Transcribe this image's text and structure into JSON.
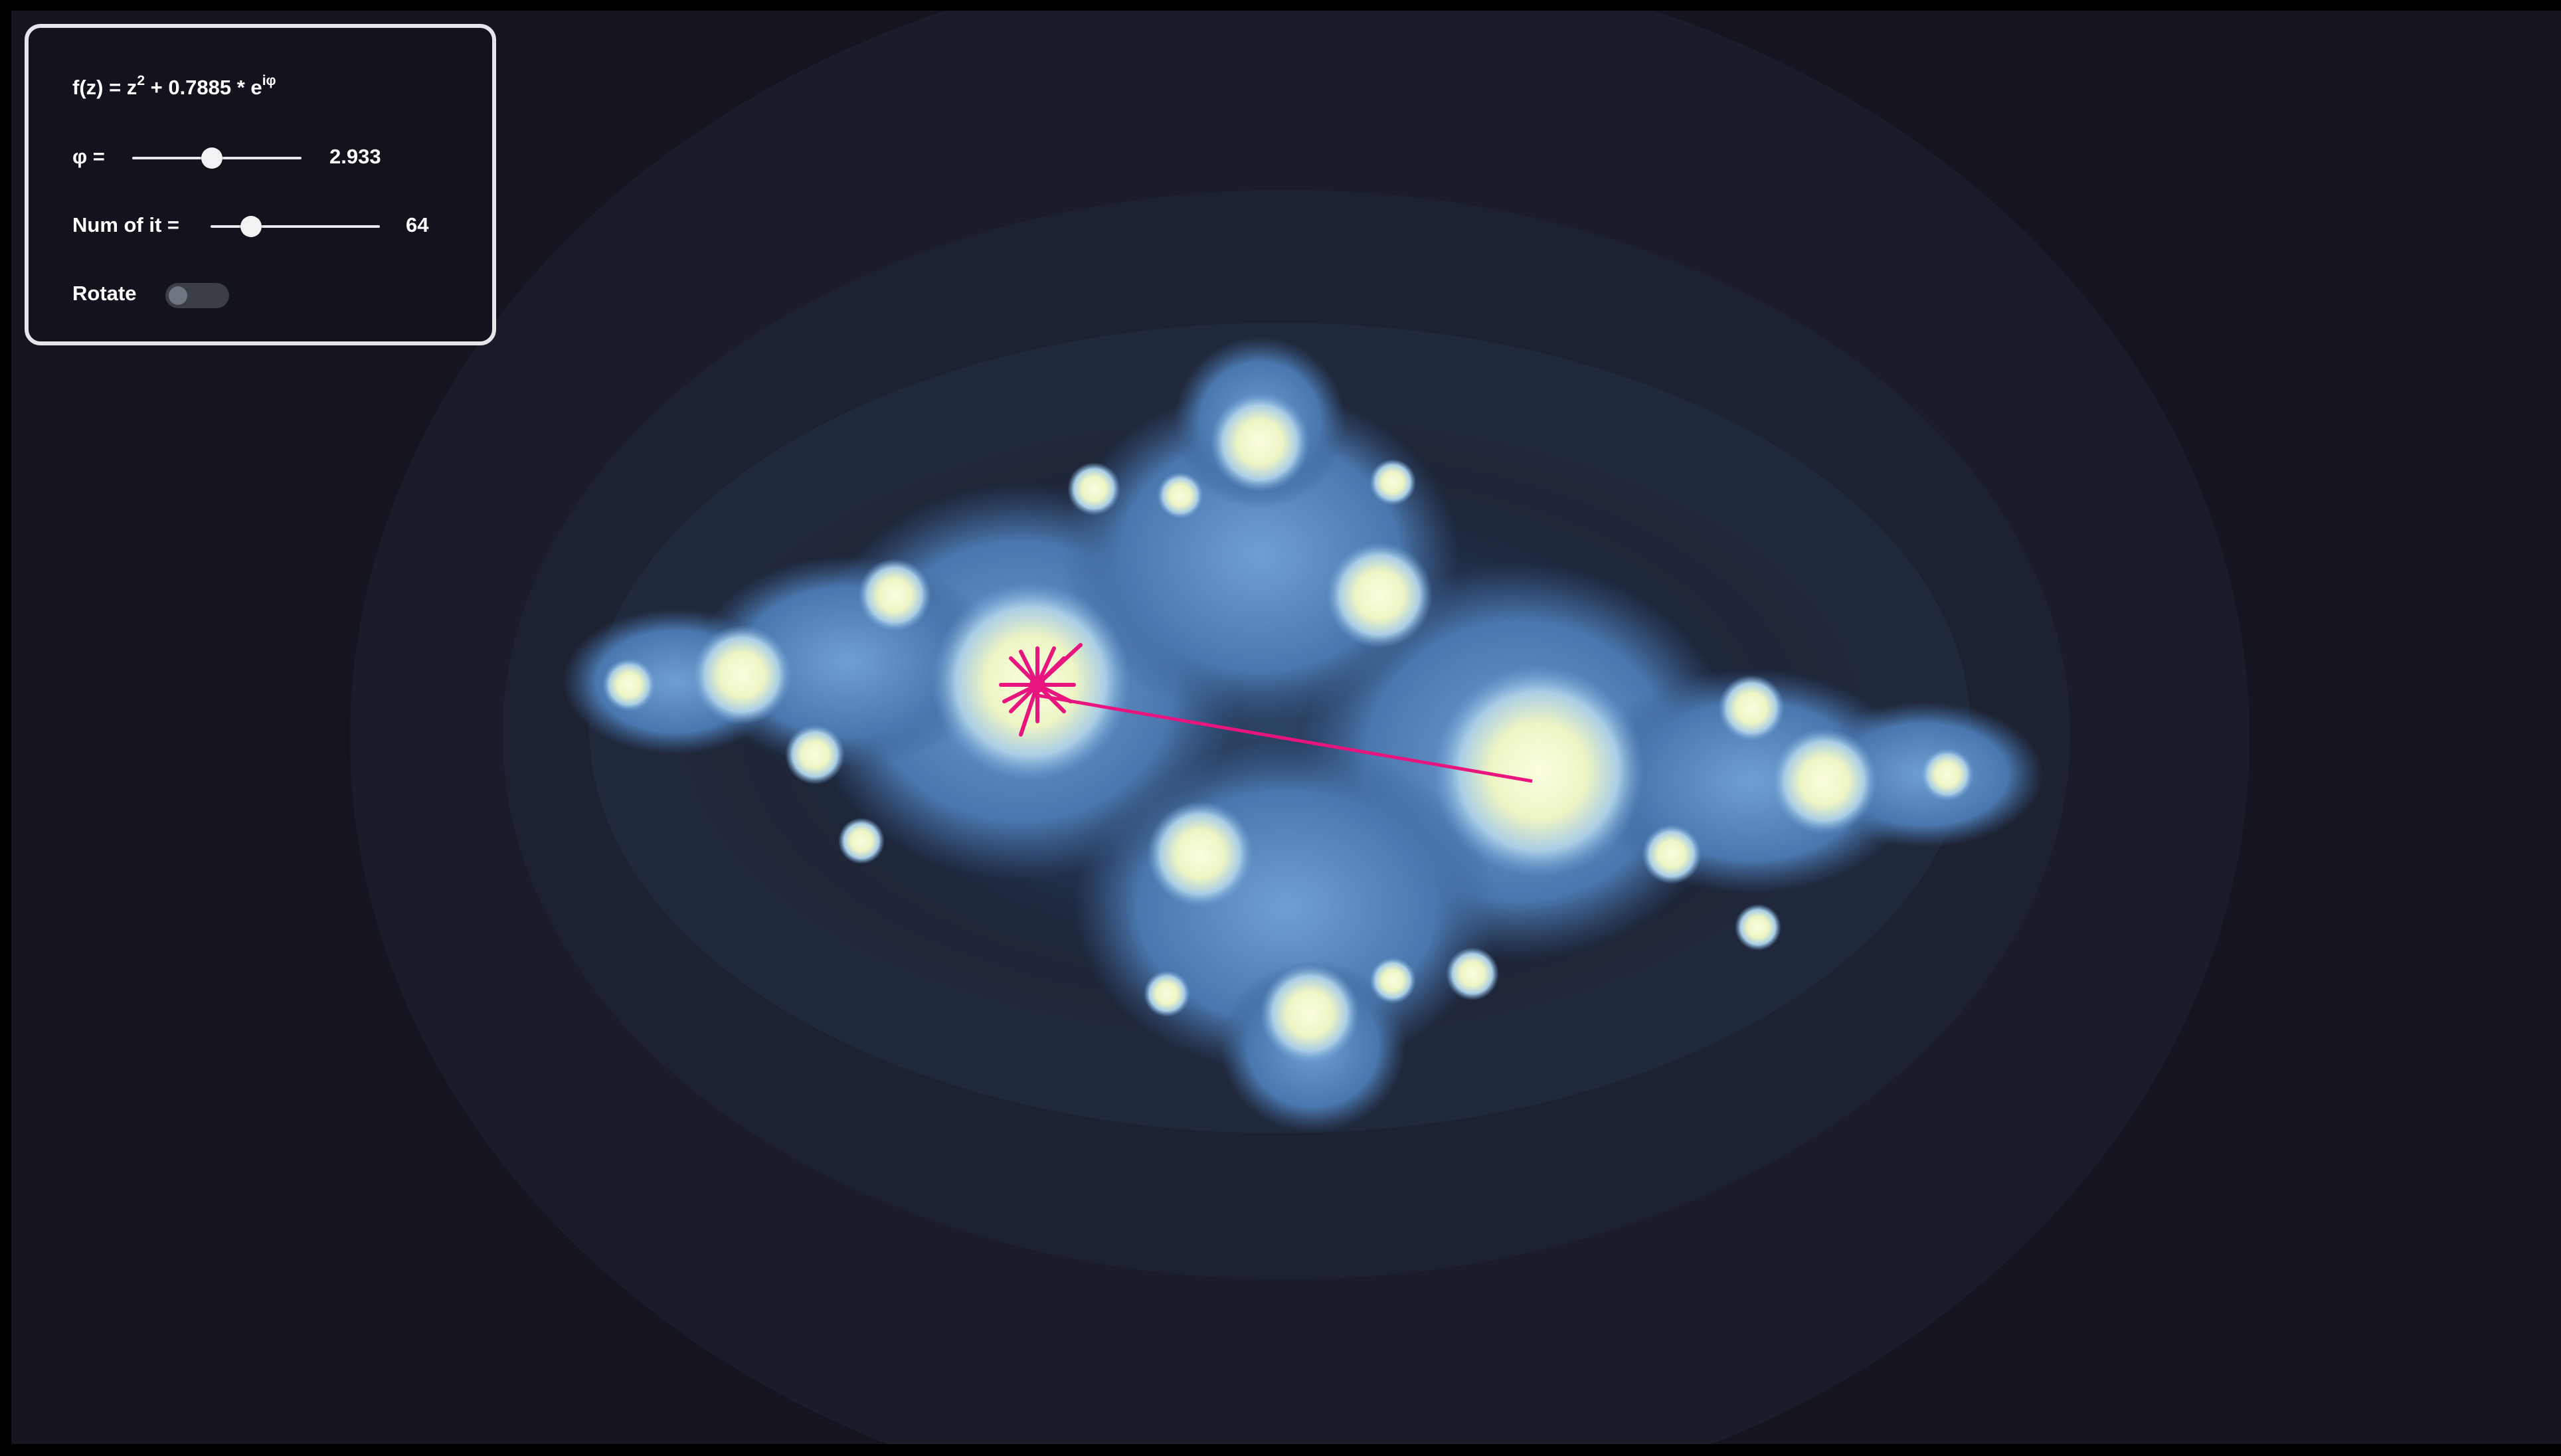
{
  "controls": {
    "formula": {
      "prefix": "f(z) = z",
      "power": "2",
      "middle": " + 0.7885 * e",
      "exponent": "iφ"
    },
    "phi": {
      "label": "φ =",
      "value": "2.933",
      "fraction": 0.47
    },
    "iterations": {
      "label": "Num of it =",
      "value": "64",
      "fraction": 0.24
    },
    "rotate": {
      "label": "Rotate",
      "checked": false
    }
  },
  "colors": {
    "background": "#14151f",
    "panel_border": "#e6e6ea",
    "fractal_light": "#f4f8c8",
    "fractal_mid": "#4f7fb8",
    "orbit_line": "#e8157f"
  }
}
